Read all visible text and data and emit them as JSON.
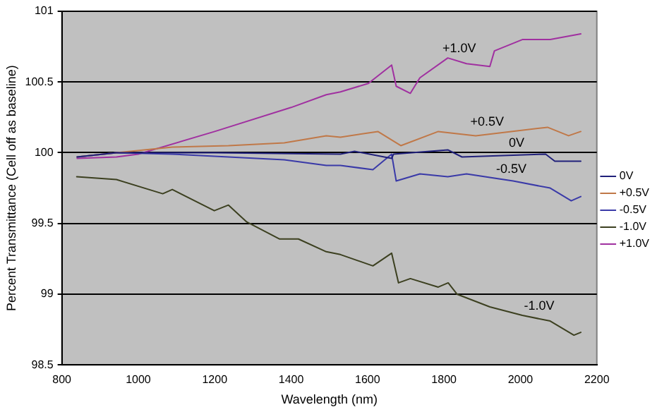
{
  "chart_data": {
    "type": "line",
    "xlabel": "Wavelength (nm)",
    "ylabel": "Percent Transmittance (Cell off as baseline)",
    "xlim": [
      800,
      2200
    ],
    "xticks": [
      800,
      1000,
      1200,
      1400,
      1600,
      1800,
      2000,
      2200
    ],
    "ylim": [
      98.5,
      101
    ],
    "yticks": [
      98.5,
      99,
      99.5,
      100,
      100.5,
      101
    ],
    "grid": "y",
    "legend": "right",
    "marker": "none",
    "line_style": "solid",
    "annotations": [
      {
        "text": "+1.0V",
        "x": 1840,
        "y": 100.65
      },
      {
        "text": "+0.5V",
        "x": 1913,
        "y": 100.13
      },
      {
        "text": "0V",
        "x": 1990,
        "y": 99.98
      },
      {
        "text": "-0.5V",
        "x": 1976,
        "y": 99.8
      },
      {
        "text": "-1.0V",
        "x": 2049,
        "y": 98.83
      }
    ],
    "series": [
      {
        "name": "0V",
        "color": "#20207a",
        "x": [
          840,
          943,
          1200,
          1529,
          1566,
          1663,
          1668,
          1810,
          1847,
          2066,
          2090,
          2158
        ],
        "values": [
          99.97,
          100.0,
          100.0,
          99.99,
          100.01,
          99.96,
          99.99,
          100.02,
          99.97,
          99.99,
          99.94,
          99.94
        ]
      },
      {
        "name": "+0.5V",
        "color": "#c07848",
        "x": [
          840,
          943,
          1089,
          1236,
          1382,
          1492,
          1529,
          1627,
          1687,
          1785,
          1883,
          2071,
          2126,
          2158
        ],
        "values": [
          99.97,
          100.0,
          100.04,
          100.05,
          100.07,
          100.12,
          100.11,
          100.15,
          100.05,
          100.15,
          100.12,
          100.18,
          100.12,
          100.15
        ]
      },
      {
        "name": "-0.5V",
        "color": "#3a3aa8",
        "x": [
          840,
          943,
          1089,
          1236,
          1382,
          1492,
          1529,
          1614,
          1663,
          1675,
          1737,
          1810,
          1859,
          1981,
          2078,
          2133,
          2158
        ],
        "values": [
          99.97,
          100.0,
          99.99,
          99.97,
          99.95,
          99.91,
          99.91,
          99.88,
          99.99,
          99.8,
          99.85,
          99.83,
          99.85,
          99.8,
          99.75,
          99.66,
          99.69
        ]
      },
      {
        "name": "-1.0V",
        "color": "#3c4020",
        "x": [
          839,
          943,
          1064,
          1089,
          1199,
          1236,
          1284,
          1370,
          1419,
          1492,
          1529,
          1614,
          1663,
          1681,
          1712,
          1785,
          1811,
          1834,
          1920,
          2005,
          2078,
          2140,
          2158
        ],
        "values": [
          99.83,
          99.81,
          99.71,
          99.74,
          99.59,
          99.63,
          99.51,
          99.39,
          99.39,
          99.3,
          99.28,
          99.2,
          99.29,
          99.08,
          99.11,
          99.05,
          99.08,
          99.0,
          98.91,
          98.85,
          98.81,
          98.71,
          98.73
        ]
      },
      {
        "name": "+1.0V",
        "color": "#a030a0",
        "x": [
          840,
          943,
          1000,
          1200,
          1400,
          1492,
          1529,
          1602,
          1663,
          1675,
          1712,
          1737,
          1810,
          1859,
          1920,
          1932,
          2005,
          2078,
          2158
        ],
        "values": [
          99.96,
          99.97,
          99.99,
          100.15,
          100.32,
          100.41,
          100.43,
          100.49,
          100.62,
          100.47,
          100.42,
          100.53,
          100.67,
          100.63,
          100.61,
          100.72,
          100.8,
          100.8,
          100.84
        ]
      }
    ]
  }
}
